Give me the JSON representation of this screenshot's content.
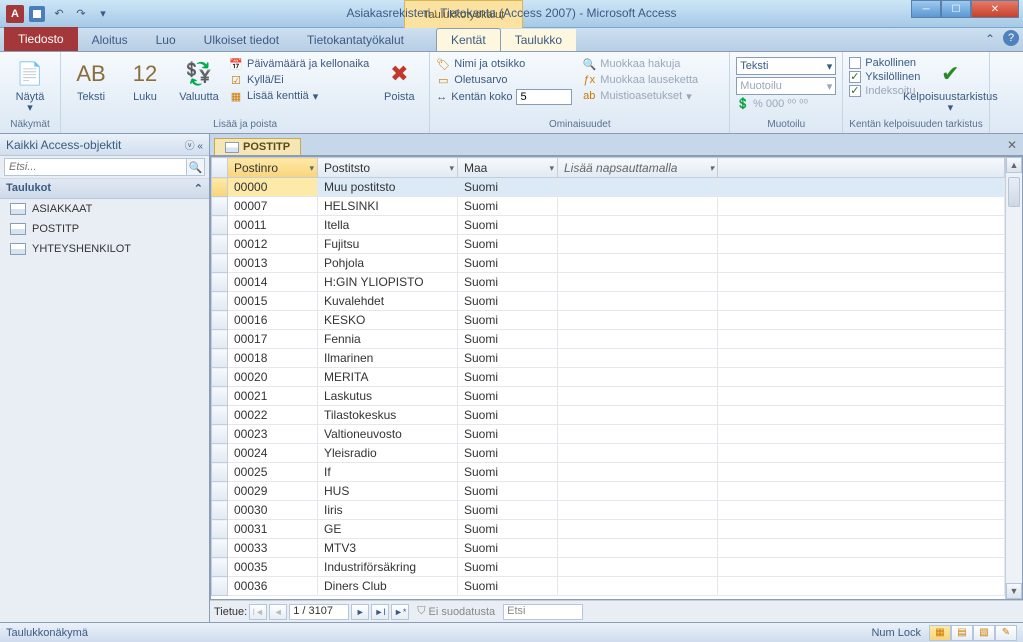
{
  "window": {
    "app_letter": "A",
    "contextual_title": "Taulukkotyökalut",
    "title": "Asiakasrekisteri : Tietokanta (Access 2007)  -  Microsoft Access"
  },
  "tabs": {
    "file": "Tiedosto",
    "items": [
      "Aloitus",
      "Luo",
      "Ulkoiset tiedot",
      "Tietokantatyökalut"
    ],
    "context": [
      "Kentät",
      "Taulukko"
    ],
    "active": "Kentät"
  },
  "ribbon": {
    "views": {
      "btn": "Näytä",
      "group": "Näkymät"
    },
    "addremove": {
      "text": "Teksti",
      "number": "Luku",
      "currency": "Valuutta",
      "datetime": "Päivämäärä ja kellonaika",
      "yesno": "Kyllä/Ei",
      "more": "Lisää kenttiä",
      "delete": "Poista",
      "group": "Lisää ja poista"
    },
    "properties": {
      "nametitle": "Nimi ja otsikko",
      "default": "Oletusarvo",
      "fieldsize_label": "Kentän koko",
      "fieldsize_value": "5",
      "lookup": "Muokkaa hakuja",
      "expr": "Muokkaa lauseketta",
      "memo": "Muistioasetukset",
      "group": "Ominaisuudet"
    },
    "formatting": {
      "datatype": "Teksti",
      "format": "Muotoilu",
      "group": "Muotoilu"
    },
    "validation": {
      "required": "Pakollinen",
      "unique": "Yksilöllinen",
      "indexed": "Indeksoitu",
      "btn": "Kelpoisuustarkistus",
      "group": "Kentän kelpoisuuden tarkistus"
    }
  },
  "nav": {
    "title": "Kaikki Access-objektit",
    "search_placeholder": "Etsi...",
    "group": "Taulukot",
    "items": [
      "ASIAKKAAT",
      "POSTITP",
      "YHTEYSHENKILOT"
    ]
  },
  "doc": {
    "tab": "POSTITP",
    "columns": {
      "c1": "Postinro",
      "c2": "Postitsto",
      "c3": "Maa",
      "add": "Lisää napsauttamalla"
    },
    "rows": [
      {
        "p": "00000",
        "t": "Muu postitsto",
        "m": "Suomi"
      },
      {
        "p": "00007",
        "t": "HELSINKI",
        "m": "Suomi"
      },
      {
        "p": "00011",
        "t": "Itella",
        "m": "Suomi"
      },
      {
        "p": "00012",
        "t": "Fujitsu",
        "m": "Suomi"
      },
      {
        "p": "00013",
        "t": "Pohjola",
        "m": "Suomi"
      },
      {
        "p": "00014",
        "t": "H:GIN YLIOPISTO",
        "m": "Suomi"
      },
      {
        "p": "00015",
        "t": "Kuvalehdet",
        "m": "Suomi"
      },
      {
        "p": "00016",
        "t": "KESKO",
        "m": "Suomi"
      },
      {
        "p": "00017",
        "t": "Fennia",
        "m": "Suomi"
      },
      {
        "p": "00018",
        "t": "Ilmarinen",
        "m": "Suomi"
      },
      {
        "p": "00020",
        "t": "MERITA",
        "m": "Suomi"
      },
      {
        "p": "00021",
        "t": "Laskutus",
        "m": "Suomi"
      },
      {
        "p": "00022",
        "t": "Tilastokeskus",
        "m": "Suomi"
      },
      {
        "p": "00023",
        "t": "Valtioneuvosto",
        "m": "Suomi"
      },
      {
        "p": "00024",
        "t": "Yleisradio",
        "m": "Suomi"
      },
      {
        "p": "00025",
        "t": "If",
        "m": "Suomi"
      },
      {
        "p": "00029",
        "t": "HUS",
        "m": "Suomi"
      },
      {
        "p": "00030",
        "t": "Iiris",
        "m": "Suomi"
      },
      {
        "p": "00031",
        "t": "GE",
        "m": "Suomi"
      },
      {
        "p": "00033",
        "t": "MTV3",
        "m": "Suomi"
      },
      {
        "p": "00035",
        "t": "Industriförsäkring",
        "m": "Suomi"
      },
      {
        "p": "00036",
        "t": "Diners Club",
        "m": "Suomi"
      }
    ],
    "recnav": {
      "label": "Tietue:",
      "pos": "1 / 3107",
      "filter": "Ei suodatusta",
      "search": "Etsi"
    }
  },
  "status": {
    "left": "Taulukkonäkymä",
    "numlock": "Num Lock"
  }
}
